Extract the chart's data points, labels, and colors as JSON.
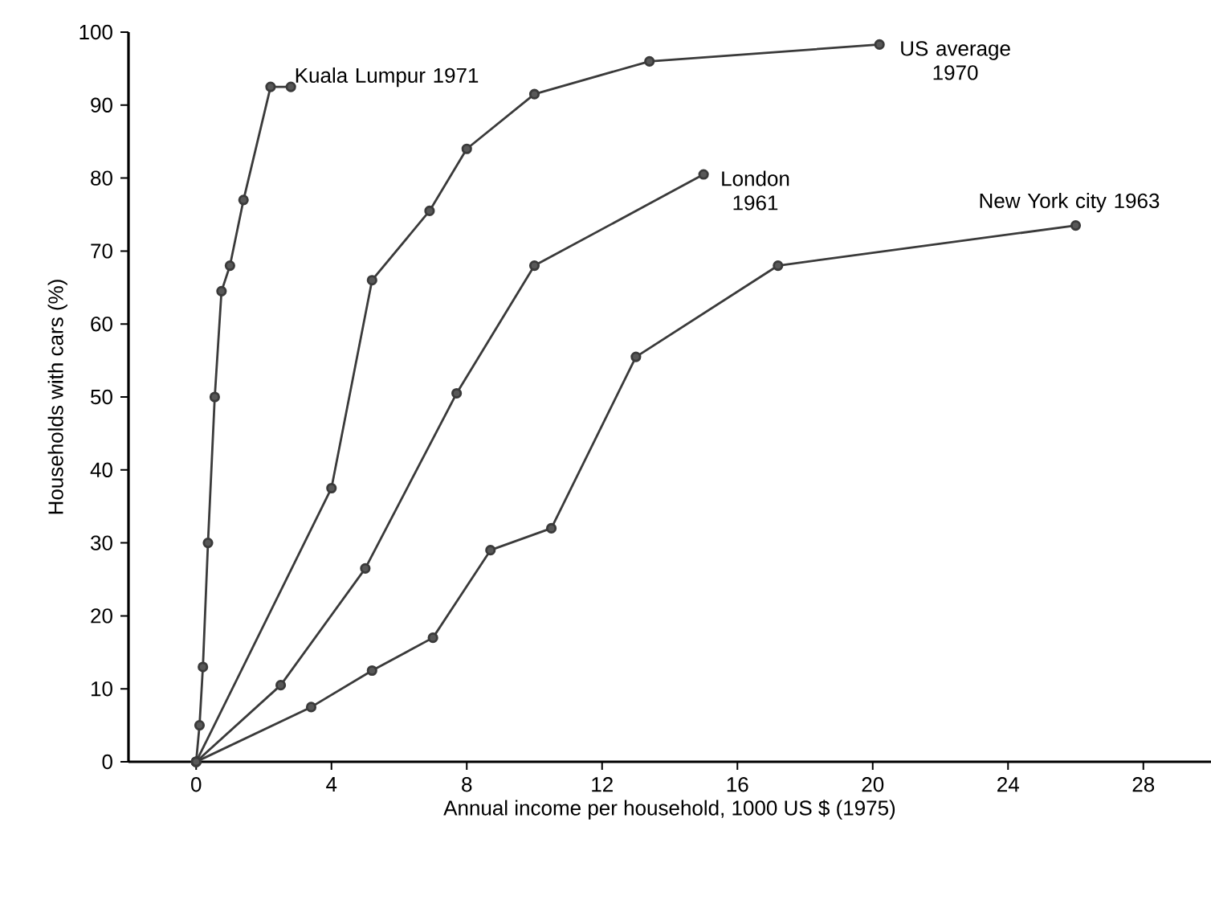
{
  "chart_data": {
    "type": "line",
    "xlabel": "Annual income per household, 1000 US $ (1975)",
    "ylabel": "Households with cars (%)",
    "xlim": [
      -2,
      30
    ],
    "xticks": [
      0,
      4,
      8,
      12,
      16,
      20,
      24,
      28
    ],
    "ylim": [
      0,
      100
    ],
    "yticks": [
      0,
      10,
      20,
      30,
      40,
      50,
      60,
      70,
      80,
      90,
      100
    ],
    "grid": false,
    "legend": false,
    "marker": "circle",
    "line_style": "solid",
    "series": [
      {
        "name": "Kuala Lumpur 1971",
        "color": "#3a3a3a",
        "x": [
          0,
          0.1,
          0.2,
          0.35,
          0.55,
          0.75,
          1.0,
          1.4,
          2.2,
          2.8
        ],
        "values": [
          0,
          5,
          13,
          30,
          50,
          64.5,
          68,
          77,
          92.5,
          92.5
        ]
      },
      {
        "name": "US average 1970",
        "color": "#3a3a3a",
        "x": [
          0,
          4,
          5.2,
          6.9,
          8,
          10,
          13.4,
          20.2
        ],
        "values": [
          0,
          37.5,
          66,
          75.5,
          84,
          91.5,
          96,
          98.3
        ]
      },
      {
        "name": "London 1961",
        "color": "#3a3a3a",
        "x": [
          0,
          2.5,
          5,
          7.7,
          10,
          15
        ],
        "values": [
          0,
          10.5,
          26.5,
          50.5,
          68,
          80.5
        ]
      },
      {
        "name": "New York city 1963",
        "color": "#3a3a3a",
        "x": [
          0,
          3.4,
          5.2,
          7,
          8.7,
          10.5,
          13,
          17.2,
          26
        ],
        "values": [
          0,
          7.5,
          12.5,
          17,
          29,
          32,
          55.5,
          68,
          73.5
        ]
      }
    ]
  }
}
